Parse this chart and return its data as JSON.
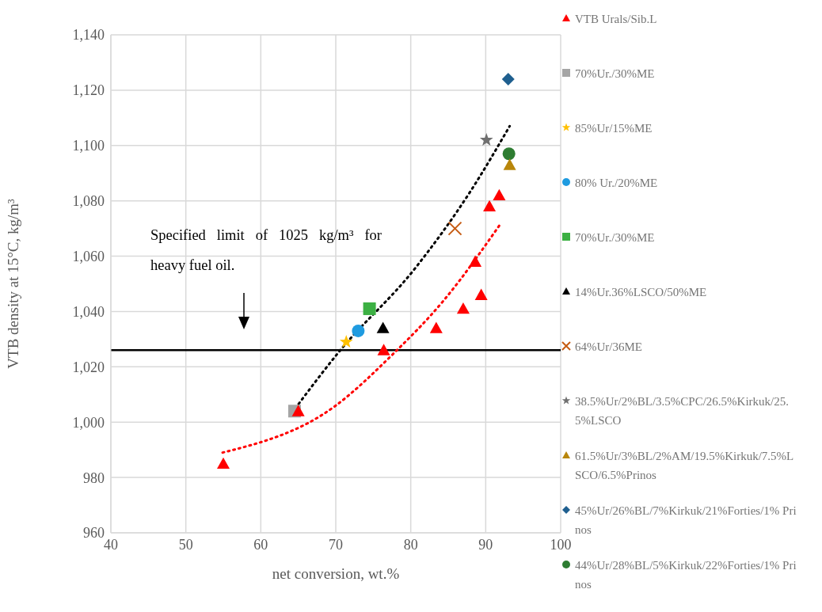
{
  "chart_data": {
    "type": "scatter",
    "xlabel": "net conversion, wt.%",
    "ylabel": "VTB density at 15°C, kg/m³",
    "xlim": [
      40,
      100
    ],
    "xticks": [
      40,
      50,
      60,
      70,
      80,
      90,
      100
    ],
    "ylim": [
      960,
      1140
    ],
    "yticks": [
      960,
      980,
      {
        "value": 1000,
        "label": "1,000"
      },
      {
        "value": 1020,
        "label": "1,020"
      },
      {
        "value": 1040,
        "label": "1,040"
      },
      {
        "value": 1060,
        "label": "1,060"
      },
      {
        "value": 1080,
        "label": "1,080"
      },
      {
        "value": 1100,
        "label": "1,100"
      },
      {
        "value": 1120,
        "label": "1,120"
      },
      {
        "value": 1140,
        "label": "1,140"
      }
    ],
    "grid": true,
    "legend": "right",
    "series": [
      {
        "name": "VTB Urals/Sib.L",
        "color": "#ff0000",
        "marker": "triangle",
        "x": [
          55,
          65,
          76.4,
          83.4,
          87,
          89.4,
          88.6,
          90.5,
          91.8
        ],
        "values": [
          985,
          1004,
          1026,
          1034,
          1041,
          1046,
          1058,
          1078,
          1082
        ]
      },
      {
        "name": "70%Ur./30%ME",
        "color": "#a5a5a5",
        "marker": "square",
        "x": [
          64.5
        ],
        "values": [
          1004
        ]
      },
      {
        "name": "85%Ur/15%ME",
        "color": "#ffc000",
        "marker": "star",
        "x": [
          71.4
        ],
        "values": [
          1029
        ]
      },
      {
        "name": "80% Ur./20%ME",
        "color": "#1f9be0",
        "marker": "circle",
        "x": [
          73
        ],
        "values": [
          1033
        ]
      },
      {
        "name": "70%Ur./30%ME",
        "color": "#3cb043",
        "marker": "square",
        "x": [
          74.5
        ],
        "values": [
          1041
        ]
      },
      {
        "name": "14%Ur.36%LSCO/50%ME",
        "color": "#000000",
        "marker": "triangle",
        "x": [
          76.3
        ],
        "values": [
          1034
        ]
      },
      {
        "name": "64%Ur/36ME",
        "color": "#c55a11",
        "marker": "cross",
        "x": [
          85.9
        ],
        "values": [
          1070
        ]
      },
      {
        "name": "38.5%Ur/2%BL/3.5%CPC/26.5%Kirkuk/25.5%LSCO",
        "color": "#707070",
        "marker": "star",
        "x": [
          90.1
        ],
        "values": [
          1102
        ]
      },
      {
        "name": "61.5%Ur/3%BL/2%AM/19.5%Kirkuk/7.5%LSCO/6.5%Prinos",
        "color": "#b8860b",
        "marker": "triangle",
        "x": [
          93.2
        ],
        "values": [
          1093
        ]
      },
      {
        "name": "45%Ur/26%BL/7%Kirkuk/21%Forties/1% Prinos",
        "color": "#1f5f8f",
        "marker": "diamond",
        "x": [
          93
        ],
        "values": [
          1124
        ]
      },
      {
        "name": "44%Ur/28%BL/5%Kirkuk/22%Forties/1% Prinos",
        "color": "#2e7d32",
        "marker": "circle",
        "x": [
          93.1
        ],
        "values": [
          1097
        ]
      },
      {
        "type": "line",
        "color": "#000000",
        "marker": "none",
        "line_style": "dotted",
        "x": [
          64.6,
          70.3,
          80.7,
          88.1,
          93.2
        ],
        "values": [
          1005,
          1025,
          1056,
          1084,
          1107
        ]
      },
      {
        "type": "line",
        "color": "#ff0000",
        "marker": "none",
        "line_style": "dotted",
        "x": [
          54.9,
          70,
          77.4,
          84.4,
          91.8
        ],
        "values": [
          989,
          1006,
          1024,
          1044,
          1071
        ]
      }
    ],
    "ref_lines": [
      {
        "axis": "y",
        "value": 1026,
        "color": "#000000"
      }
    ],
    "annotations": [
      "Specified limit of 1025 kg/m³ for heavy fuel oil."
    ]
  }
}
